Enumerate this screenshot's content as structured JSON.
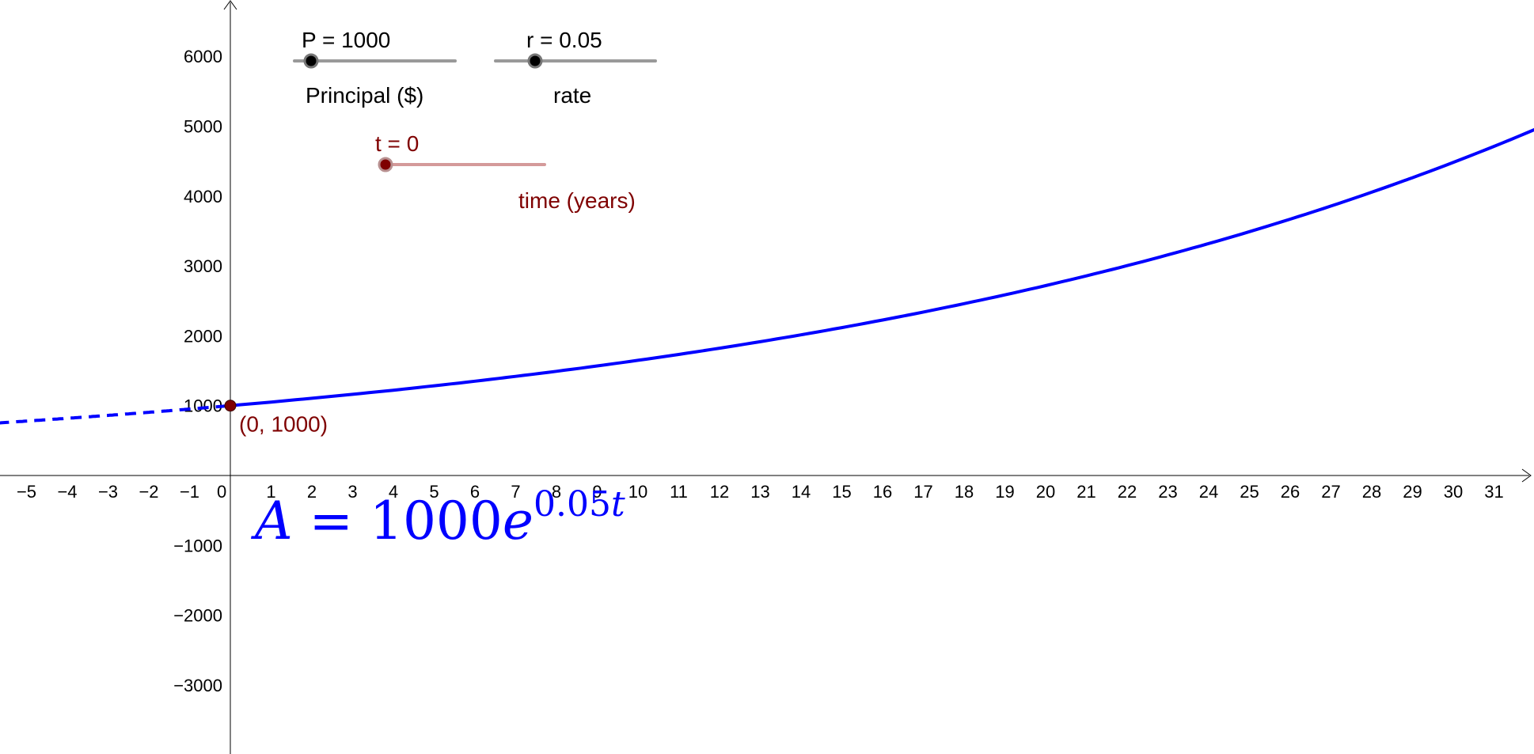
{
  "graph": {
    "x_ticks": [
      "−5",
      "−4",
      "−3",
      "−2",
      "−1",
      "0",
      "1",
      "2",
      "3",
      "4",
      "5",
      "6",
      "7",
      "8",
      "9",
      "10",
      "11",
      "12",
      "13",
      "14",
      "15",
      "16",
      "17",
      "18",
      "19",
      "20",
      "21",
      "22",
      "23",
      "24",
      "25",
      "26",
      "27",
      "28",
      "29",
      "30",
      "31"
    ],
    "y_ticks": [
      "−3000",
      "−2000",
      "−1000",
      "1000",
      "2000",
      "3000",
      "4000",
      "5000",
      "6000"
    ]
  },
  "sliders": {
    "principal": {
      "caption": "P = 1000",
      "label": "Principal ($)",
      "value": 1000
    },
    "rate": {
      "caption": "r = 0.05",
      "label": "rate",
      "value": 0.05
    },
    "time": {
      "caption": "t = 0",
      "label": "time (years)",
      "value": 0
    }
  },
  "point": {
    "label": "(0, 1000)"
  },
  "formula": {
    "lhs": "A",
    "equals": "=",
    "coefficient": "1000",
    "base": "e",
    "exponent_number": "0.05",
    "exponent_var": "t"
  },
  "colors": {
    "curve": "#0000ff",
    "time_accent": "#7f0000",
    "slider_track": "#999999",
    "time_track": "#d49a9a"
  },
  "chart_data": {
    "type": "line",
    "function": "A = 1000e^(0.05t)",
    "series": [
      {
        "style": "dashed",
        "x": [
          -5.7,
          -5,
          -4,
          -3,
          -2,
          -1,
          0
        ],
        "y": [
          752,
          779,
          819,
          861,
          905,
          951,
          1000
        ]
      },
      {
        "style": "solid",
        "x": [
          0,
          2,
          4,
          6,
          8,
          10,
          12,
          14,
          16,
          18,
          20,
          22,
          24,
          26,
          28,
          30,
          32
        ],
        "y": [
          1000,
          1105,
          1221,
          1350,
          1492,
          1649,
          1822,
          2014,
          2226,
          2460,
          2718,
          3004,
          3320,
          3669,
          4055,
          4482,
          4953
        ]
      }
    ],
    "xlim": [
      -5.7,
      32.3
    ],
    "ylim": [
      -3900,
      6800
    ],
    "grid": false
  }
}
